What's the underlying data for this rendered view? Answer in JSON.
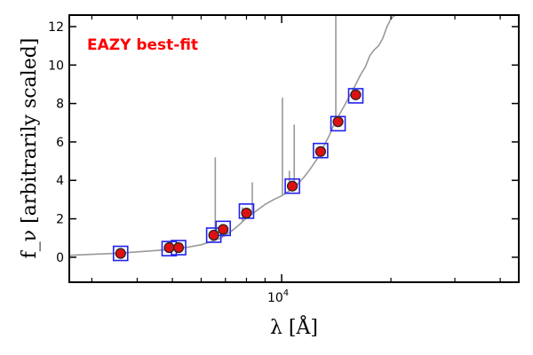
{
  "chart_data": {
    "type": "scatter",
    "annotation": "EAZY best-fit",
    "xlabel": "λ [Å]",
    "ylabel": "f_ν [arbitrarily scaled]",
    "x_scale": "log",
    "xlim": [
      2600,
      45000
    ],
    "ylim": [
      -1.3,
      12.6
    ],
    "x_ticks": [
      {
        "value": 10000,
        "base": "10",
        "exp": "4"
      }
    ],
    "y_ticks": [
      0,
      2,
      4,
      6,
      8,
      10,
      12
    ],
    "grid": false,
    "colors": {
      "annotation": "#ff0000",
      "template": "#999999",
      "observed_fill": "#dd1111",
      "observed_edge": "#222222",
      "model_box": "#2222ee"
    },
    "series": [
      {
        "role": "template",
        "x": [
          2600,
          3000,
          3500,
          4000,
          4500,
          5000,
          5500,
          6000,
          6500,
          6800,
          7200,
          7600,
          8000,
          8500,
          9000,
          9500,
          10000,
          10500,
          11000,
          11500,
          12000,
          12500,
          13000,
          13500,
          14000,
          14500,
          15000,
          15500,
          16000,
          16500,
          17000,
          17500,
          18000,
          18500,
          19000,
          19500,
          20000,
          20500
        ],
        "y": [
          0.1,
          0.15,
          0.2,
          0.28,
          0.35,
          0.42,
          0.52,
          0.65,
          0.85,
          1.0,
          1.3,
          1.65,
          2.05,
          2.4,
          2.75,
          3.0,
          3.2,
          3.45,
          3.75,
          4.15,
          4.6,
          5.1,
          5.7,
          6.3,
          7.0,
          7.5,
          8.0,
          8.5,
          9.0,
          9.5,
          9.9,
          10.5,
          10.8,
          11.0,
          11.4,
          12.0,
          12.4,
          12.6
        ]
      },
      {
        "role": "emission-lines",
        "x": [
          6563,
          7800,
          8300,
          10050,
          10500,
          10830,
          14100
        ],
        "peak": [
          5.2,
          2.6,
          3.9,
          8.3,
          4.5,
          6.9,
          12.6
        ]
      },
      {
        "role": "model-photometry",
        "x": [
          3600,
          4900,
          5200,
          6500,
          6900,
          8000,
          10700,
          12800,
          14300,
          16000
        ],
        "y": [
          0.2,
          0.45,
          0.5,
          1.15,
          1.5,
          2.4,
          3.7,
          5.55,
          6.95,
          8.4
        ]
      },
      {
        "role": "observed-photometry",
        "x": [
          3600,
          4900,
          5200,
          6500,
          6900,
          8000,
          10700,
          12800,
          14300,
          16000
        ],
        "y": [
          0.2,
          0.5,
          0.5,
          1.15,
          1.45,
          2.3,
          3.7,
          5.5,
          7.05,
          8.45
        ]
      }
    ]
  }
}
